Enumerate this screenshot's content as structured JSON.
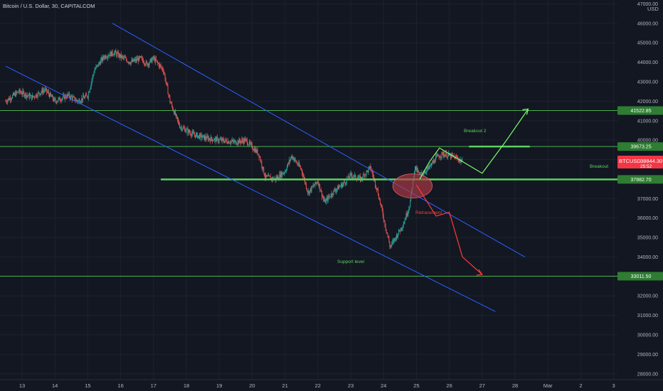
{
  "header": {
    "title": "Bitcoin / U.S. Dollar, 30, CAPITALCOM",
    "currency": "USD"
  },
  "colors": {
    "background": "#131722",
    "grid": "#1e222d",
    "axis_text": "#b2b5be",
    "candle_up": "#26a69a",
    "candle_down": "#ef5350",
    "channel": "#2962ff",
    "level": "#4caf50",
    "level_bright": "#5bd15f",
    "projection_up": "#7cfc6a",
    "projection_down": "#ff3b3b",
    "price_tag": "#f23645",
    "ellipse": "#b33a46"
  },
  "chart_data": {
    "type": "candlestick",
    "symbol": "BTCUSD",
    "x_ticks": [
      "13",
      "14",
      "15",
      "16",
      "17",
      "18",
      "19",
      "20",
      "21",
      "22",
      "23",
      "24",
      "25",
      "26",
      "27",
      "28",
      "Mar",
      "2",
      "3"
    ],
    "y_ticks": [
      "28000.00",
      "29000.00",
      "30000.00",
      "31000.00",
      "32000.00",
      "33000.00",
      "34000.00",
      "35000.00",
      "36000.00",
      "37000.00",
      "38000.00",
      "39000.00",
      "40000.00",
      "41000.00",
      "42000.00",
      "43000.00",
      "44000.00",
      "45000.00",
      "46000.00",
      "47000.00"
    ],
    "ylim": [
      27700,
      47200
    ],
    "xlim": [
      12.5,
      4.5
    ],
    "current_price": {
      "label": "BTCUSD",
      "value": "38844.30",
      "countdown": "25:52"
    },
    "levels": [
      {
        "value": 41522.85,
        "label": "41522.85",
        "style": "thin"
      },
      {
        "value": 39673.25,
        "label": "39673.25",
        "style": "thin"
      },
      {
        "value": 37982.7,
        "label": "37982.70",
        "style": "thick"
      },
      {
        "value": 33011.5,
        "label": "33011.50",
        "style": "thin"
      }
    ],
    "annotations": [
      {
        "text": "Breakout 2",
        "color": "#5bd15f"
      },
      {
        "text": "Breakout",
        "color": "#5bd15f"
      },
      {
        "text": "Support level",
        "color": "#5bd15f"
      },
      {
        "text": "Retracement",
        "color": "#ff3b3b"
      }
    ],
    "price_path": [
      [
        12.5,
        42000
      ],
      [
        12.9,
        42500
      ],
      [
        13.3,
        42200
      ],
      [
        13.7,
        42600
      ],
      [
        14.0,
        42000
      ],
      [
        14.4,
        42300
      ],
      [
        14.7,
        42000
      ],
      [
        15.0,
        42300
      ],
      [
        15.2,
        43600
      ],
      [
        15.5,
        44300
      ],
      [
        15.8,
        44500
      ],
      [
        16.0,
        44300
      ],
      [
        16.3,
        44000
      ],
      [
        16.6,
        44200
      ],
      [
        16.8,
        43900
      ],
      [
        17.0,
        44200
      ],
      [
        17.3,
        43600
      ],
      [
        17.5,
        42000
      ],
      [
        17.8,
        40700
      ],
      [
        18.2,
        40300
      ],
      [
        18.6,
        40100
      ],
      [
        19.0,
        40000
      ],
      [
        19.5,
        39900
      ],
      [
        19.8,
        40000
      ],
      [
        20.2,
        39300
      ],
      [
        20.4,
        38100
      ],
      [
        20.7,
        38000
      ],
      [
        21.0,
        38400
      ],
      [
        21.2,
        39200
      ],
      [
        21.5,
        38500
      ],
      [
        21.7,
        37300
      ],
      [
        22.0,
        37900
      ],
      [
        22.2,
        36800
      ],
      [
        22.5,
        37400
      ],
      [
        22.8,
        37800
      ],
      [
        23.0,
        38200
      ],
      [
        23.3,
        38000
      ],
      [
        23.6,
        38600
      ],
      [
        23.8,
        37500
      ],
      [
        24.0,
        36000
      ],
      [
        24.2,
        34500
      ],
      [
        24.4,
        35100
      ],
      [
        24.6,
        35700
      ],
      [
        24.8,
        36700
      ],
      [
        24.95,
        38600
      ],
      [
        25.1,
        38200
      ],
      [
        25.4,
        38600
      ],
      [
        25.6,
        39100
      ],
      [
        25.8,
        39300
      ],
      [
        26.0,
        39200
      ],
      [
        26.2,
        39100
      ],
      [
        26.4,
        38900
      ]
    ],
    "channel_lines": [
      {
        "from": [
          12.5,
          43800
        ],
        "to": [
          27.4,
          31200
        ]
      },
      {
        "from": [
          15.75,
          46000
        ],
        "to": [
          28.3,
          34000
        ]
      }
    ],
    "projections": {
      "up": [
        [
          25.1,
          38000
        ],
        [
          25.4,
          38900
        ],
        [
          25.7,
          39600
        ],
        [
          26.5,
          38800
        ],
        [
          27.0,
          38300
        ],
        [
          27.7,
          39900
        ],
        [
          28.4,
          41600
        ]
      ],
      "down": [
        [
          25.0,
          37700
        ],
        [
          25.3,
          36900
        ],
        [
          25.6,
          36100
        ],
        [
          26.0,
          36300
        ],
        [
          26.4,
          34000
        ],
        [
          27.0,
          33100
        ]
      ]
    },
    "ellipse": {
      "center": [
        24.88,
        37650
      ],
      "rx_days": 0.6,
      "ry_price": 620
    }
  }
}
